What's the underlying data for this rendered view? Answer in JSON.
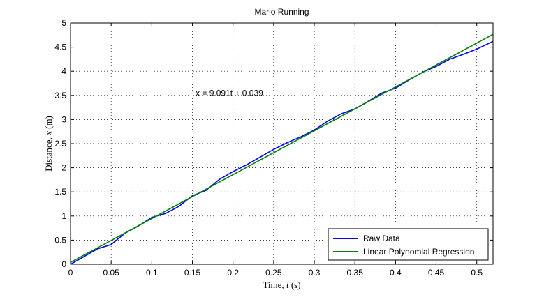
{
  "chart_data": {
    "type": "line",
    "title": "Mario Running",
    "xlabel_prefix": "Time, ",
    "xlabel_var": "t",
    "xlabel_unit": " (s)",
    "ylabel_prefix": "Distance, ",
    "ylabel_var": "x",
    "ylabel_unit": " (m)",
    "xlim": [
      0,
      0.52
    ],
    "ylim": [
      0,
      5
    ],
    "xticks": [
      0,
      0.05,
      0.1,
      0.15,
      0.2,
      0.25,
      0.3,
      0.35,
      0.4,
      0.45,
      0.5
    ],
    "xtick_labels": [
      "0",
      "0.05",
      "0.1",
      "0.15",
      "0.2",
      "0.25",
      "0.3",
      "0.35",
      "0.4",
      "0.45",
      "0.5"
    ],
    "yticks": [
      0,
      0.5,
      1,
      1.5,
      2,
      2.5,
      3,
      3.5,
      4,
      4.5,
      5
    ],
    "ytick_labels": [
      "0",
      "0.5",
      "1",
      "1.5",
      "2",
      "2.5",
      "3",
      "3.5",
      "4",
      "4.5",
      "5"
    ],
    "grid": true,
    "grid_style": "dotted",
    "legend_position": "bottom-right",
    "annotation": {
      "text": "x = 9.091t + 0.039",
      "x": 0.135,
      "y": 3.55
    },
    "series": [
      {
        "name": "Raw Data",
        "color": "#0000ff",
        "kind": "line",
        "x": [
          0,
          0.0167,
          0.0333,
          0.05,
          0.0667,
          0.0833,
          0.1,
          0.1167,
          0.1333,
          0.15,
          0.1667,
          0.1833,
          0.2,
          0.2167,
          0.2333,
          0.25,
          0.2667,
          0.2833,
          0.3,
          0.3167,
          0.3333,
          0.35,
          0.3667,
          0.3833,
          0.4,
          0.4167,
          0.4333,
          0.45,
          0.4667,
          0.4833,
          0.5,
          0.52
        ],
        "y": [
          0.0,
          0.16,
          0.32,
          0.41,
          0.64,
          0.79,
          0.97,
          1.05,
          1.2,
          1.42,
          1.53,
          1.76,
          1.92,
          2.06,
          2.22,
          2.38,
          2.52,
          2.64,
          2.78,
          2.97,
          3.12,
          3.22,
          3.38,
          3.55,
          3.65,
          3.82,
          3.98,
          4.1,
          4.25,
          4.35,
          4.46,
          4.62
        ]
      },
      {
        "name": "Linear Polynomial Regression",
        "color": "#008000",
        "kind": "line",
        "x": [
          0,
          0.52
        ],
        "y": [
          0.039,
          4.766
        ]
      }
    ]
  }
}
